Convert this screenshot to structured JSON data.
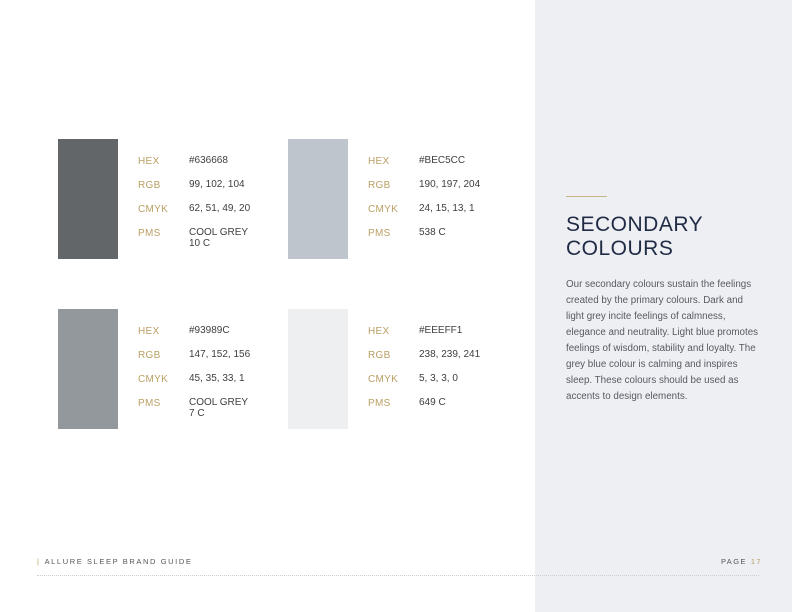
{
  "colors": [
    {
      "hex_label": "HEX",
      "hex": "#636668",
      "rgb_label": "RGB",
      "rgb": "99, 102, 104",
      "cmyk_label": "CMYK",
      "cmyk": "62, 51, 49, 20",
      "pms_label": "PMS",
      "pms": "COOL GREY\n10 C",
      "swatch": "#636668"
    },
    {
      "hex_label": "HEX",
      "hex": "#BEC5CC",
      "rgb_label": "RGB",
      "rgb": "190, 197, 204",
      "cmyk_label": "CMYK",
      "cmyk": "24, 15, 13, 1",
      "pms_label": "PMS",
      "pms": "538 C",
      "swatch": "#BEC5CC"
    },
    {
      "hex_label": "HEX",
      "hex": "#93989C",
      "rgb_label": "RGB",
      "rgb": "147, 152, 156",
      "cmyk_label": "CMYK",
      "cmyk": "45, 35, 33, 1",
      "pms_label": "PMS",
      "pms": "COOL GREY\n7 C",
      "swatch": "#93989C"
    },
    {
      "hex_label": "HEX",
      "hex": "#EEEFF1",
      "rgb_label": "RGB",
      "rgb": "238, 239, 241",
      "cmyk_label": "CMYK",
      "cmyk": "5, 3, 3, 0",
      "pms_label": "PMS",
      "pms": "649 C",
      "swatch": "#EEEFF1"
    }
  ],
  "section": {
    "title": "SECONDARY\nCOLOURS",
    "body": "Our secondary colours sustain the feelings created by the primary colours. Dark and light grey incite feelings of calmness, elegance and neutrality. Light blue promotes feelings of wisdom, stability and loyalty. The grey blue colour is calming and inspires sleep. These colours should be used as accents to design elements."
  },
  "footer": {
    "guide_title": "ALLURE SLEEP BRAND GUIDE",
    "page_label": "PAGE",
    "page_number": "17"
  },
  "palette": {
    "accent": "#B99F63",
    "panel": "#EEEFF3",
    "title": "#1F2A44"
  }
}
